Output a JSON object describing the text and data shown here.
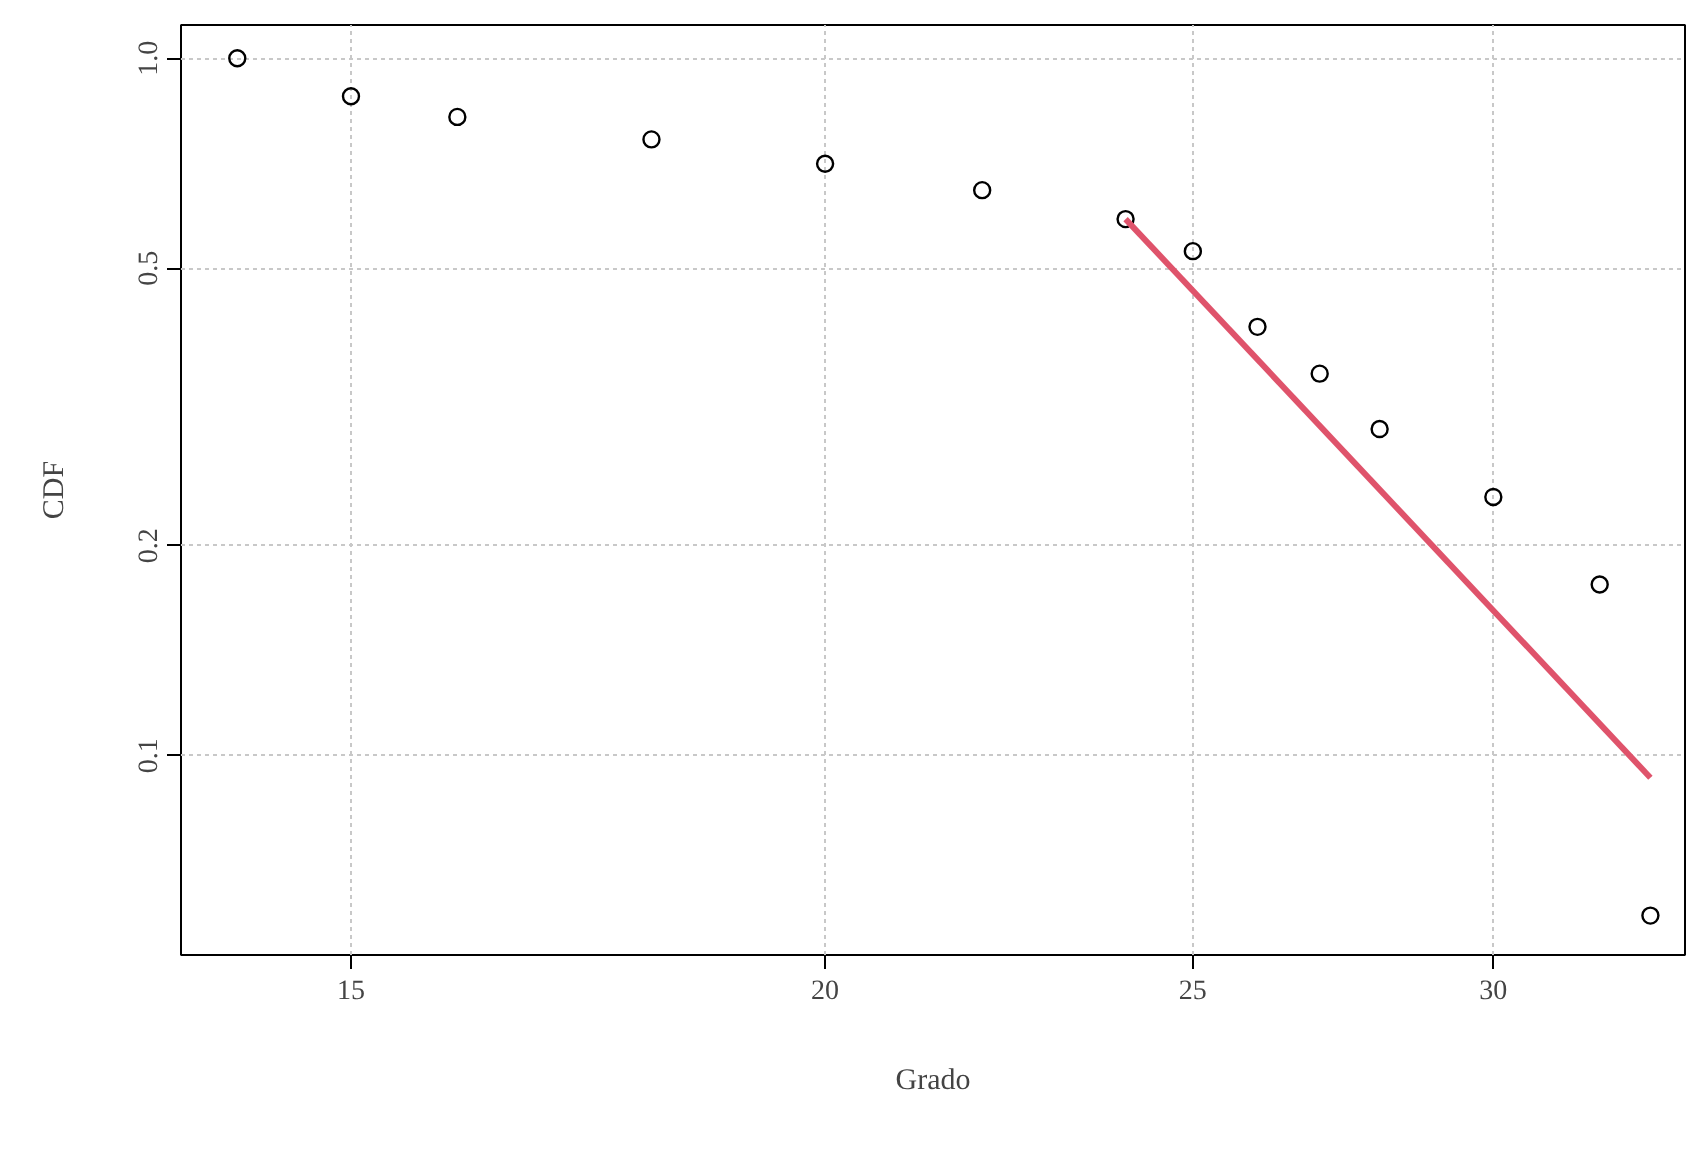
{
  "chart_data": {
    "type": "scatter",
    "xlabel": "Grado",
    "ylabel": "CDF",
    "log": "xy",
    "grid": true,
    "xlim": [
      13.53,
      33.7
    ],
    "ylim": [
      0.0518,
      1.116
    ],
    "xticks": [
      15,
      20,
      25,
      30
    ],
    "yticks": [
      0.1,
      0.2,
      0.5,
      {
        "value": 1,
        "label": "1.0"
      }
    ],
    "series": [
      {
        "marker": "circle",
        "color": "#000000",
        "x": [
          14,
          15,
          16,
          18,
          20,
          22,
          24,
          25,
          26,
          27,
          28,
          30,
          32,
          33
        ],
        "values": [
          1.0,
          0.882,
          0.824,
          0.765,
          0.706,
          0.647,
          0.588,
          0.529,
          0.412,
          0.353,
          0.294,
          0.235,
          0.176,
          0.059
        ]
      },
      {
        "type": "line",
        "marker": "none",
        "color": "#df536b",
        "x": [
          24,
          33
        ],
        "values": [
          0.588,
          0.093
        ]
      }
    ]
  }
}
